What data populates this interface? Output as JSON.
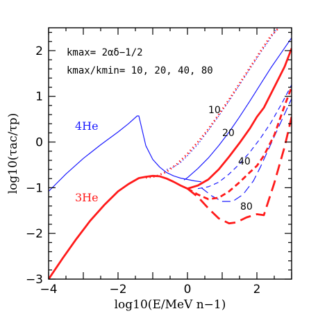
{
  "chart_data": {
    "type": "line",
    "xlabel": "log10(E/MeV n−1)",
    "ylabel": "log10(τac/τp)",
    "xlim": [
      -4,
      3
    ],
    "ylim": [
      -3,
      2.5
    ],
    "x_ticks": [
      -4,
      -2,
      0,
      2
    ],
    "y_ticks": [
      -3,
      -2,
      -1,
      0,
      1,
      2
    ],
    "x_tick_labels": [
      "−4",
      "−2",
      "0",
      "2"
    ],
    "y_tick_labels": [
      "−3",
      "−2",
      "−1",
      "0",
      "1",
      "2"
    ],
    "grid": false,
    "annotations": {
      "kmax_formula": "kmax= 2αδ−1/2",
      "ratio_line": "kmax/kmin= 10, 20, 40, 80"
    },
    "curve_labels": {
      "he4": "4He",
      "he3": "3He",
      "k10": "10",
      "k20": "20",
      "k40": "40",
      "k80": "80"
    },
    "colors": {
      "he4": "#1a1aff",
      "he3": "#ff1a1a",
      "axis": "#000000"
    },
    "series": [
      {
        "name": "4He",
        "color": "#1a1aff",
        "x": [
          -4,
          -3.5,
          -3,
          -2.5,
          -2,
          -1.7,
          -1.45,
          -1.4,
          -1.2,
          -1.0,
          -0.8,
          -0.6,
          -0.4,
          -0.2,
          0.0,
          0.2,
          0.4
        ],
        "y": [
          -1.08,
          -0.7,
          -0.36,
          -0.06,
          0.22,
          0.4,
          0.57,
          0.57,
          -0.08,
          -0.38,
          -0.55,
          -0.67,
          -0.74,
          -0.79,
          -0.82,
          -0.85,
          -0.87
        ]
      },
      {
        "name": "3He",
        "color": "#ff1a1a",
        "x": [
          -4,
          -3.6,
          -3.2,
          -2.8,
          -2.4,
          -2.0,
          -1.7,
          -1.4,
          -1.2,
          -1.0,
          -0.8,
          -0.6,
          -0.4,
          -0.2,
          0.0
        ],
        "y": [
          -3.0,
          -2.55,
          -2.12,
          -1.72,
          -1.38,
          -1.08,
          -0.92,
          -0.79,
          -0.76,
          -0.74,
          -0.75,
          -0.8,
          -0.87,
          -0.95,
          -1.02
        ]
      },
      {
        "name": "4He k10",
        "color": "#1a1aff",
        "x": [
          -0.6,
          -0.4,
          -0.2,
          0.0,
          0.3,
          0.6,
          0.9,
          1.2,
          1.5,
          1.8,
          2.1,
          2.4,
          2.6
        ],
        "y": [
          -0.6,
          -0.55,
          -0.45,
          -0.3,
          -0.05,
          0.25,
          0.57,
          0.9,
          1.25,
          1.6,
          1.95,
          2.28,
          2.5
        ]
      },
      {
        "name": "4He k20",
        "color": "#1a1aff",
        "x": [
          -0.1,
          0.0,
          0.3,
          0.6,
          0.9,
          1.2,
          1.5,
          1.8,
          2.1,
          2.4,
          2.7,
          3.0
        ],
        "y": [
          -0.83,
          -0.78,
          -0.58,
          -0.35,
          -0.08,
          0.22,
          0.55,
          0.9,
          1.26,
          1.62,
          1.95,
          2.28
        ]
      },
      {
        "name": "4He k40",
        "color": "#1a1aff",
        "x": [
          0.3,
          0.6,
          0.9,
          1.2,
          1.5,
          1.8,
          2.1,
          2.4,
          2.7,
          3.0
        ],
        "y": [
          -1.02,
          -0.98,
          -0.88,
          -0.7,
          -0.48,
          -0.22,
          0.08,
          0.42,
          0.82,
          1.25
        ]
      },
      {
        "name": "4He k80",
        "color": "#1a1aff",
        "x": [
          0.4,
          0.7,
          1.0,
          1.3,
          1.6,
          1.9,
          2.1,
          2.4,
          2.7,
          3.0
        ],
        "y": [
          -1.0,
          -1.18,
          -1.3,
          -1.3,
          -1.15,
          -0.85,
          -0.55,
          -0.05,
          0.45,
          0.95
        ]
      },
      {
        "name": "3He k10",
        "color": "#ff1a1a",
        "x": [
          -1.2,
          -0.9,
          -0.6,
          -0.3,
          0.0,
          0.3,
          0.6,
          0.9,
          1.2,
          1.5,
          1.8,
          2.1,
          2.4,
          2.7
        ],
        "y": [
          -0.78,
          -0.75,
          -0.65,
          -0.48,
          -0.26,
          0.0,
          0.28,
          0.6,
          0.93,
          1.28,
          1.63,
          1.98,
          2.32,
          2.55
        ]
      },
      {
        "name": "3He k20",
        "color": "#ff1a1a",
        "x": [
          0.0,
          0.3,
          0.6,
          0.9,
          1.2,
          1.5,
          1.8,
          2.0,
          2.2,
          2.5,
          2.8,
          3.0
        ],
        "y": [
          -1.02,
          -0.95,
          -0.82,
          -0.6,
          -0.32,
          -0.02,
          0.3,
          0.55,
          0.75,
          1.2,
          1.65,
          2.05
        ]
      },
      {
        "name": "3He k40",
        "color": "#ff1a1a",
        "x": [
          0.0,
          0.3,
          0.6,
          0.9,
          1.2,
          1.5,
          1.8,
          2.0,
          2.2,
          2.5,
          2.8,
          3.0
        ],
        "y": [
          -1.02,
          -1.15,
          -1.25,
          -1.22,
          -1.08,
          -0.88,
          -0.66,
          -0.52,
          -0.3,
          0.15,
          0.8,
          1.2
        ]
      },
      {
        "name": "3He k80",
        "color": "#ff1a1a",
        "x": [
          0.0,
          0.3,
          0.6,
          0.9,
          1.2,
          1.4,
          1.7,
          2.0,
          2.2,
          2.5,
          2.8,
          3.0
        ],
        "y": [
          -1.02,
          -1.2,
          -1.45,
          -1.67,
          -1.78,
          -1.76,
          -1.65,
          -1.58,
          -1.6,
          -0.9,
          -0.1,
          0.55
        ]
      }
    ]
  }
}
